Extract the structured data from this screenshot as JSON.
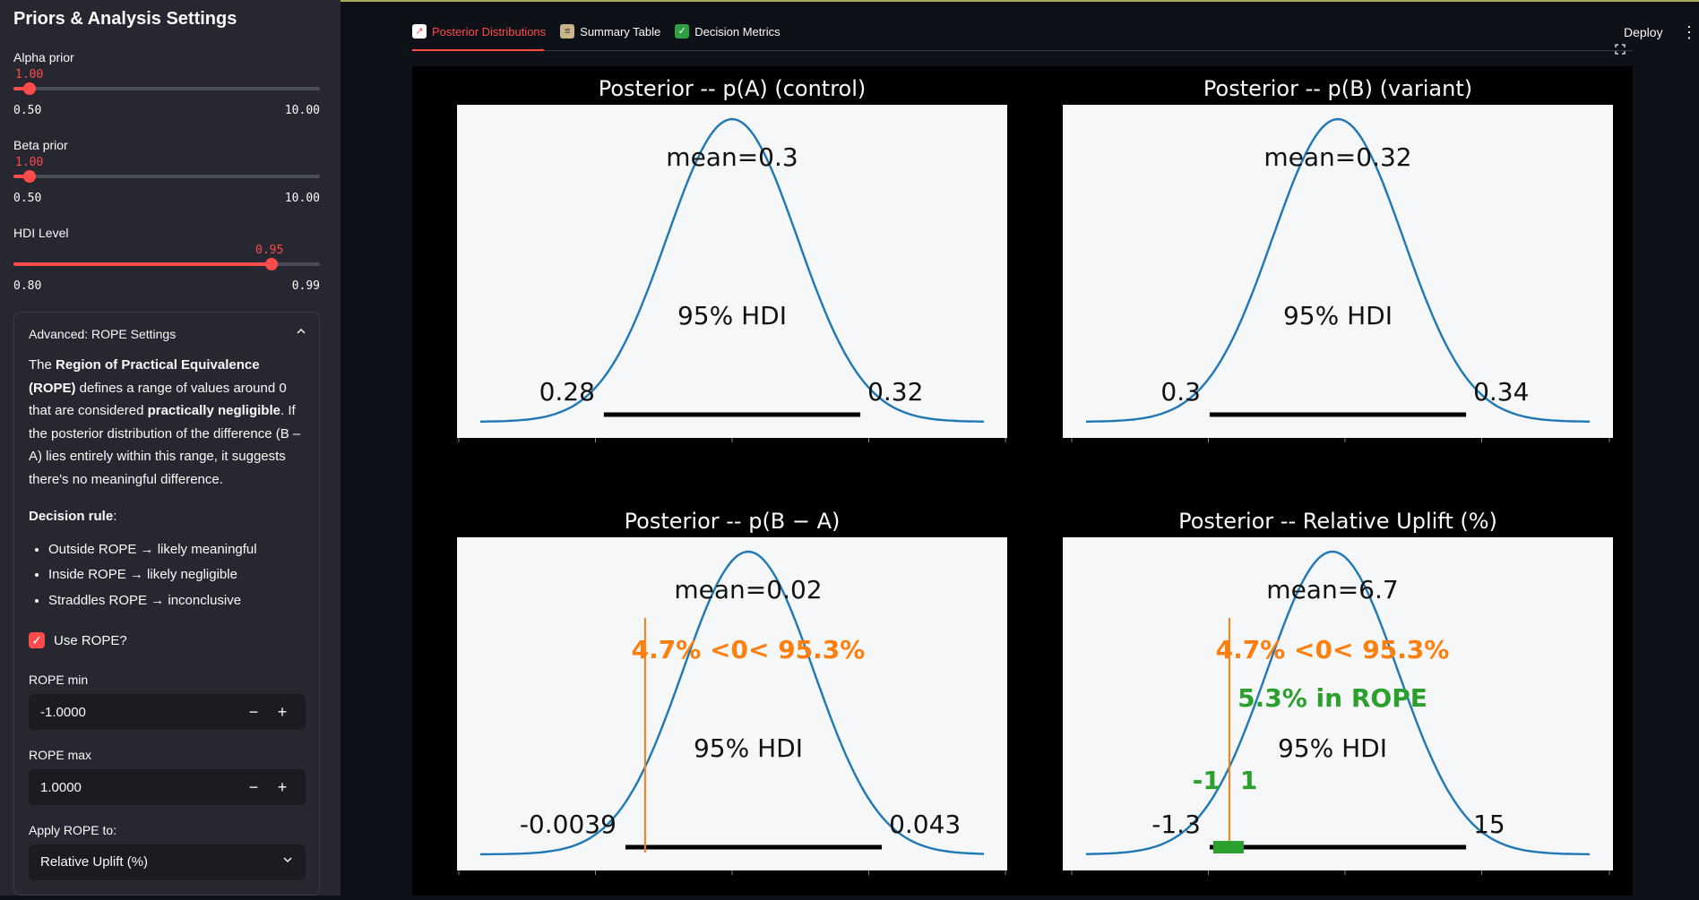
{
  "sidebar": {
    "title": "Priors & Analysis Settings",
    "alpha": {
      "label": "Alpha prior",
      "value": "1.00",
      "min": "0.50",
      "max": "10.00",
      "fraction": 0.053
    },
    "beta": {
      "label": "Beta prior",
      "value": "1.00",
      "min": "0.50",
      "max": "10.00",
      "fraction": 0.053
    },
    "hdi": {
      "label": "HDI Level",
      "value": "0.95",
      "min": "0.80",
      "max": "0.99",
      "fraction": 0.789
    },
    "expander": {
      "header": "Advanced: ROPE Settings",
      "intro_1": "The ",
      "intro_bold_1": "Region of Practical Equivalence (ROPE)",
      "intro_2": " defines a range of values around 0 that are considered ",
      "intro_bold_2": "practically negligible",
      "intro_3": ". If the posterior distribution of the difference (B – A) lies entirely within this range, it suggests there's no meaningful difference.",
      "rule_heading": "Decision rule",
      "rule_colon": ":",
      "rules": [
        "Outside ROPE → likely meaningful",
        "Inside ROPE → likely negligible",
        "Straddles ROPE → inconclusive"
      ],
      "use_rope_label": "Use ROPE?",
      "rope_min_label": "ROPE min",
      "rope_min_value": "-1.0000",
      "rope_max_label": "ROPE max",
      "rope_max_value": "1.0000",
      "apply_label": "Apply ROPE to:",
      "apply_value": "Relative Uplift (%)"
    }
  },
  "header": {
    "tabs": [
      {
        "label": "Posterior Distributions",
        "icon": "chart-icon"
      },
      {
        "label": "Summary Table",
        "icon": "clipboard-icon"
      },
      {
        "label": "Decision Metrics",
        "icon": "check-icon"
      }
    ],
    "deploy": "Deploy"
  },
  "chart_data": [
    {
      "type": "area",
      "title": "Posterior -- p(A) (control)",
      "mean_label": "mean=0.3",
      "hdi_label": "95% HDI",
      "hdi_low": "0.28",
      "hdi_high": "0.32",
      "xlim": [
        0.255,
        0.345
      ]
    },
    {
      "type": "area",
      "title": "Posterior -- p(B) (variant)",
      "mean_label": "mean=0.32",
      "hdi_label": "95% HDI",
      "hdi_low": "0.3",
      "hdi_high": "0.34",
      "xlim": [
        0.274,
        0.364
      ]
    },
    {
      "type": "area",
      "title": "Posterior -- p(B − A)",
      "mean_label": "mean=0.02",
      "hdi_label": "95% HDI",
      "hdi_low": "-0.0039",
      "hdi_high": "0.043",
      "ref_label": "4.7% <0< 95.3%",
      "xlim": [
        -0.038,
        0.077
      ]
    },
    {
      "type": "area",
      "title": "Posterior -- Relative Uplift (%)",
      "mean_label": "mean=6.7",
      "hdi_label": "95% HDI",
      "hdi_low": "-1.3",
      "hdi_high": "15",
      "ref_label": "4.7% <0< 95.3%",
      "rope_label": "5.3% in ROPE",
      "rope_low": "-1",
      "rope_high": "1",
      "xlim": [
        -12,
        28
      ]
    }
  ],
  "colors": {
    "accent": "#ff4b4b",
    "curve": "#1f77b4",
    "ref": "#ff7f0e",
    "rope": "#2ca02c"
  }
}
